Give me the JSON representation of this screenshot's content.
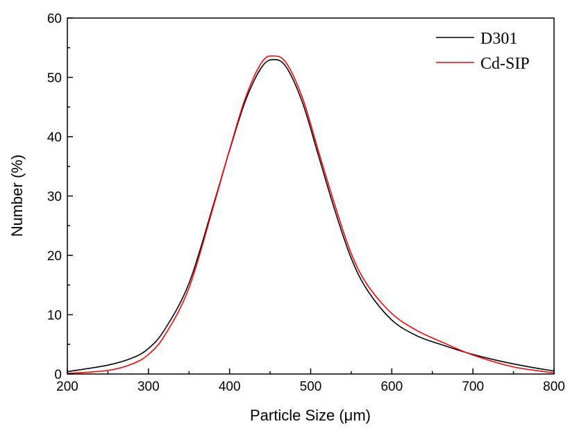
{
  "chart_data": {
    "type": "line",
    "title": "",
    "xlabel": "Particle Size (μm)",
    "ylabel": "Number (%)",
    "xlim": [
      200,
      800
    ],
    "ylim": [
      0,
      60
    ],
    "xticks": [
      200,
      300,
      400,
      500,
      600,
      700,
      800
    ],
    "yticks": [
      0,
      10,
      20,
      30,
      40,
      50,
      60
    ],
    "grid": false,
    "legend_position": "top-right",
    "series": [
      {
        "name": "D301",
        "color": "#000000",
        "x": [
          200,
          250,
          280,
          300,
          320,
          350,
          380,
          400,
          420,
          440,
          455,
          470,
          490,
          510,
          530,
          550,
          570,
          600,
          630,
          660,
          700,
          750,
          800
        ],
        "y": [
          0.4,
          1.5,
          2.7,
          4.3,
          7.5,
          15.3,
          28.5,
          37.7,
          46.2,
          51.8,
          53.0,
          51.7,
          45.7,
          36.6,
          27.5,
          19.5,
          14.1,
          9.1,
          6.5,
          5.0,
          3.3,
          1.7,
          0.5
        ]
      },
      {
        "name": "Cd-SIP",
        "color": "#ff0000",
        "x": [
          200,
          250,
          280,
          300,
          320,
          350,
          380,
          400,
          420,
          440,
          455,
          470,
          490,
          510,
          530,
          550,
          570,
          600,
          630,
          660,
          700,
          750,
          800
        ],
        "y": [
          0.1,
          0.6,
          1.7,
          3.3,
          6.5,
          14.5,
          28.2,
          37.8,
          46.7,
          52.6,
          53.6,
          52.4,
          46.5,
          37.4,
          28.4,
          20.3,
          15.0,
          10.2,
          7.4,
          5.5,
          3.2,
          1.2,
          0.2
        ]
      }
    ]
  }
}
